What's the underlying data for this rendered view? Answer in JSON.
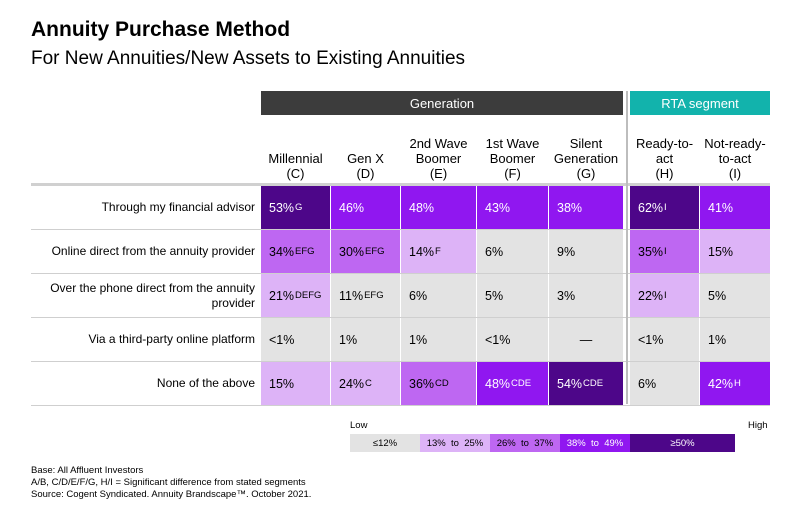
{
  "title": "Annuity Purchase Method",
  "subtitle": "For New Annuities/New Assets to Existing Annuities",
  "groups": {
    "generation": "Generation",
    "rta": "RTA segment"
  },
  "columns": [
    {
      "line1": "",
      "line2": "Millennial",
      "line3": "(C)"
    },
    {
      "line1": "",
      "line2": "Gen X",
      "line3": "(D)"
    },
    {
      "line1": "2nd Wave",
      "line2": "Boomer",
      "line3": "(E)"
    },
    {
      "line1": "1st Wave",
      "line2": "Boomer",
      "line3": "(F)"
    },
    {
      "line1": "Silent",
      "line2": "Generation",
      "line3": "(G)"
    },
    {
      "line1": "Ready-to-",
      "line2": "act",
      "line3": "(H)"
    },
    {
      "line1": "Not-ready-",
      "line2": "to-act",
      "line3": "(I)"
    }
  ],
  "chart_data": {
    "type": "table",
    "title": "Annuity Purchase Method",
    "subtitle": "For New Annuities/New Assets to Existing Annuities",
    "rows": [
      {
        "label": "Through  my financial advisor",
        "cells": [
          {
            "text": "53%",
            "sig": "G",
            "value": 53
          },
          {
            "text": "46%",
            "sig": "",
            "value": 46
          },
          {
            "text": "48%",
            "sig": "",
            "value": 48
          },
          {
            "text": "43%",
            "sig": "",
            "value": 43
          },
          {
            "text": "38%",
            "sig": "",
            "value": 38
          },
          {
            "text": "62%",
            "sig": "I",
            "value": 62
          },
          {
            "text": "41%",
            "sig": "",
            "value": 41
          }
        ]
      },
      {
        "label": "Online direct from the annuity provider",
        "cells": [
          {
            "text": "34%",
            "sig": "EFG",
            "value": 34
          },
          {
            "text": "30%",
            "sig": "EFG",
            "value": 30
          },
          {
            "text": "14%",
            "sig": "F",
            "value": 14
          },
          {
            "text": "6%",
            "sig": "",
            "value": 6
          },
          {
            "text": "9%",
            "sig": "",
            "value": 9
          },
          {
            "text": "35%",
            "sig": "I",
            "value": 35
          },
          {
            "text": "15%",
            "sig": "",
            "value": 15
          }
        ]
      },
      {
        "label": "Over the phone direct from the annuity provider",
        "cells": [
          {
            "text": "21%",
            "sig": "DEFG",
            "value": 21
          },
          {
            "text": "11%",
            "sig": "EFG",
            "value": 11
          },
          {
            "text": "6%",
            "sig": "",
            "value": 6
          },
          {
            "text": "5%",
            "sig": "",
            "value": 5
          },
          {
            "text": "3%",
            "sig": "",
            "value": 3
          },
          {
            "text": "22%",
            "sig": "I",
            "value": 22
          },
          {
            "text": "5%",
            "sig": "",
            "value": 5
          }
        ]
      },
      {
        "label": "Via a third-party online platform",
        "cells": [
          {
            "text": "<1%",
            "sig": "",
            "value": 0.5
          },
          {
            "text": "1%",
            "sig": "",
            "value": 1
          },
          {
            "text": "1%",
            "sig": "",
            "value": 1
          },
          {
            "text": "<1%",
            "sig": "",
            "value": 0.5
          },
          {
            "text": "—",
            "sig": "",
            "value": 0
          },
          {
            "text": "<1%",
            "sig": "",
            "value": 0.5
          },
          {
            "text": "1%",
            "sig": "",
            "value": 1
          }
        ]
      },
      {
        "label": "None of the above",
        "cells": [
          {
            "text": "15%",
            "sig": "",
            "value": 15
          },
          {
            "text": "24%",
            "sig": "C",
            "value": 24
          },
          {
            "text": "36%",
            "sig": "CD",
            "value": 36
          },
          {
            "text": "48%",
            "sig": "CDE",
            "value": 48
          },
          {
            "text": "54%",
            "sig": "CDE",
            "value": 54
          },
          {
            "text": "6%",
            "sig": "",
            "value": 6
          },
          {
            "text": "42%",
            "sig": "H",
            "value": 42
          }
        ]
      }
    ]
  },
  "legend": {
    "low": "Low",
    "high": "High",
    "bins": [
      {
        "text": "≤12%",
        "min": 0,
        "max": 12,
        "color": "#e3e3e3",
        "dark": false
      },
      {
        "text": "13%  to  25%",
        "min": 13,
        "max": 25,
        "color": "#ddb3f7",
        "dark": false
      },
      {
        "text": "26%  to  37%",
        "min": 26,
        "max": 37,
        "color": "#be67f2",
        "dark": false
      },
      {
        "text": "38%  to  49%",
        "min": 38,
        "max": 49,
        "color": "#9017f0",
        "dark": true
      },
      {
        "text": "≥50%",
        "min": 50,
        "max": 100,
        "color": "#4d0689",
        "dark": true
      }
    ]
  },
  "footnotes": {
    "base": "Base: All Affluent Investors",
    "sig": "A/B, C/D/E/F/G,  H/I = Significant difference from stated segments",
    "source": "Source: Cogent Syndicated. Annuity Brandscape™. October 2021."
  }
}
